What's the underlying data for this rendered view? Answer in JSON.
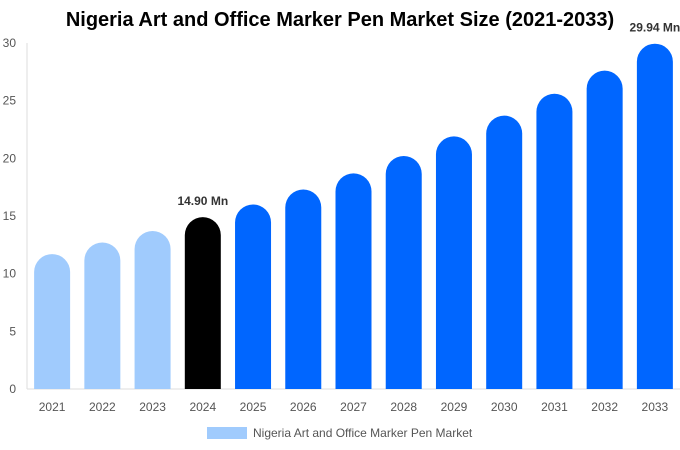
{
  "chart_data": {
    "type": "bar",
    "title": "Nigeria Art and Office Marker Pen Market Size (2021-2033)",
    "categories": [
      "2021",
      "2022",
      "2023",
      "2024",
      "2025",
      "2026",
      "2027",
      "2028",
      "2029",
      "2030",
      "2031",
      "2032",
      "2033"
    ],
    "series": [
      {
        "name": "Nigeria Art and Office Marker Pen Market",
        "values": [
          11.7,
          12.7,
          13.7,
          14.9,
          16.0,
          17.3,
          18.7,
          20.2,
          21.9,
          23.7,
          25.6,
          27.6,
          29.94
        ]
      }
    ],
    "data_labels": {
      "2024": "14.90 Mn",
      "2033": "29.94 Mn"
    },
    "ylim": [
      0,
      30
    ],
    "yticks": [
      0,
      5,
      10,
      15,
      20,
      25,
      30
    ],
    "grid": false,
    "legend": "bottom",
    "colors": {
      "historical": "#a0cbfd",
      "base_year": "#000000",
      "forecast": "#0066ff"
    }
  }
}
